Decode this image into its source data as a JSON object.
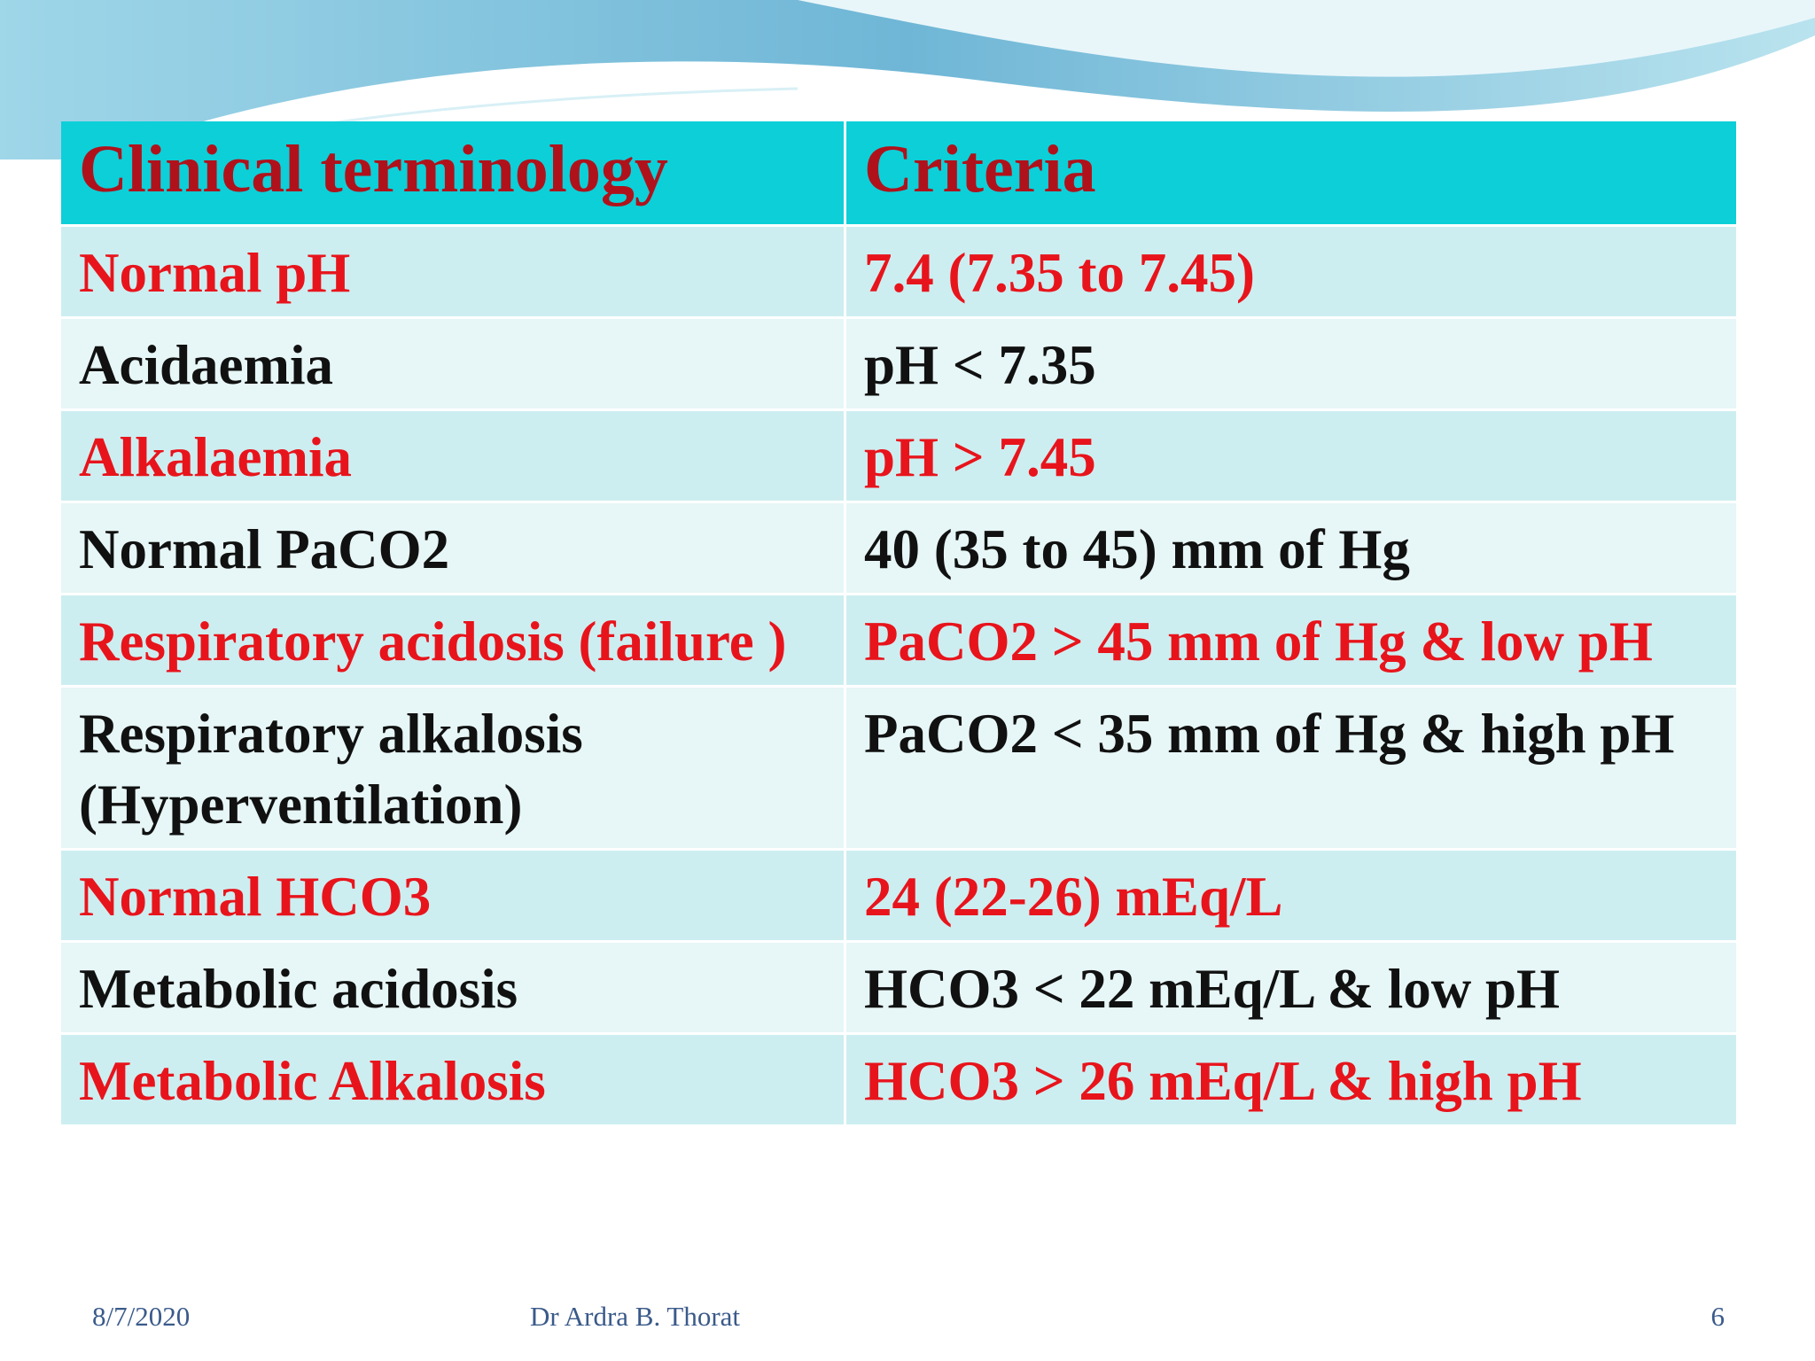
{
  "table": {
    "header": [
      "Clinical terminology",
      "Criteria"
    ],
    "rows": [
      [
        "Normal pH",
        "7.4 (7.35 to 7.45)"
      ],
      [
        "Acidaemia",
        "pH < 7.35"
      ],
      [
        "Alkalaemia",
        "pH > 7.45"
      ],
      [
        "Normal PaCO2",
        "40 (35 to 45) mm of Hg"
      ],
      [
        "Respiratory acidosis (failure )",
        "PaCO2 > 45 mm of Hg & low pH"
      ],
      [
        "Respiratory alkalosis (Hyperventilation)",
        "PaCO2 < 35 mm of Hg & high pH"
      ],
      [
        "Normal HCO3",
        "24 (22-26) mEq/L"
      ],
      [
        "Metabolic acidosis",
        "HCO3 < 22 mEq/L & low pH"
      ],
      [
        "Metabolic Alkalosis",
        "HCO3 > 26 mEq/L & high pH"
      ]
    ]
  },
  "footer": {
    "date": "8/7/2020",
    "author": "Dr Ardra B. Thorat",
    "page": "6"
  }
}
